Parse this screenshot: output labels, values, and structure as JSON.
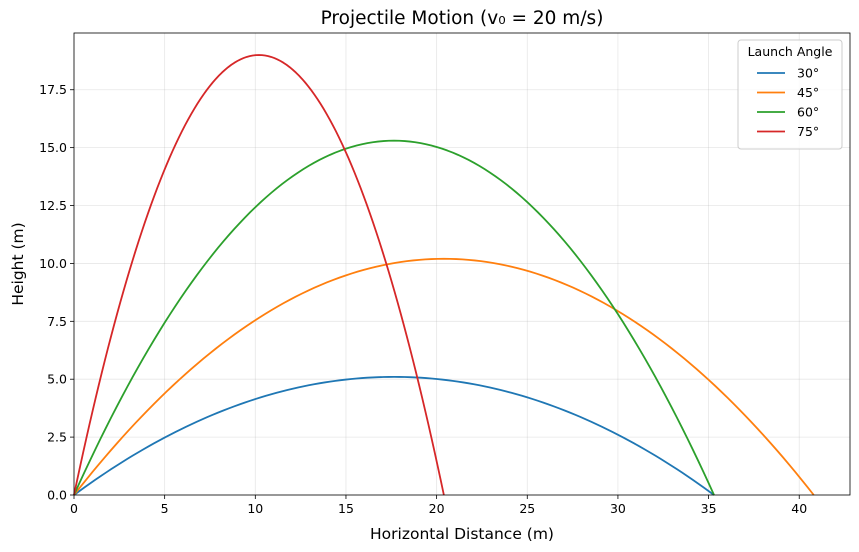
{
  "chart_data": {
    "type": "line",
    "title": "Projectile Motion (v₀ = 20 m/s)",
    "xlabel": "Horizontal Distance (m)",
    "ylabel": "Height (m)",
    "xlim": [
      0,
      42.8
    ],
    "ylim": [
      0,
      19.95
    ],
    "xticks": [
      0,
      5,
      10,
      15,
      20,
      25,
      30,
      35,
      40
    ],
    "xtick_labels": [
      "0",
      "5",
      "10",
      "15",
      "20",
      "25",
      "30",
      "35",
      "40"
    ],
    "yticks": [
      0,
      2.5,
      5,
      7.5,
      10,
      12.5,
      15,
      17.5
    ],
    "ytick_labels": [
      "0.0",
      "2.5",
      "5.0",
      "7.5",
      "10.0",
      "12.5",
      "15.0",
      "17.5"
    ],
    "grid": true,
    "legend": {
      "title": "Launch Angle",
      "placement": "top-right"
    },
    "series": [
      {
        "name": "30°",
        "color": "#1f77b4",
        "range": 35.3,
        "peak": 5.1
      },
      {
        "name": "45°",
        "color": "#ff7f0e",
        "range": 40.8,
        "peak": 10.2
      },
      {
        "name": "60°",
        "color": "#2ca02c",
        "range": 35.3,
        "peak": 15.3
      },
      {
        "name": "75°",
        "color": "#d62728",
        "range": 20.4,
        "peak": 19.0
      }
    ]
  }
}
